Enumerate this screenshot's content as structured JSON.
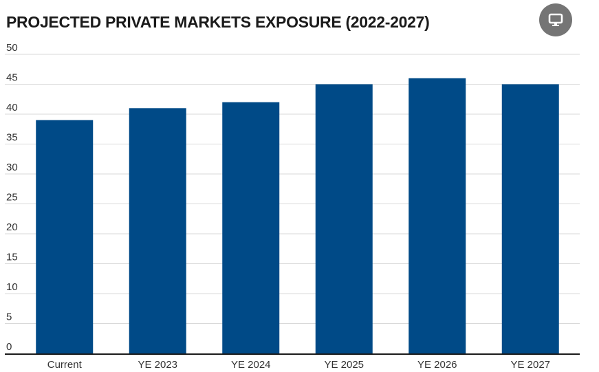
{
  "title": "PROJECTED PRIVATE MARKETS EXPOSURE (2022-2027)",
  "present_icon": "monitor-icon",
  "colors": {
    "bar": "#004a87",
    "grid": "#d9d9d9",
    "axis": "#1a1a1a",
    "button": "#757575"
  },
  "chart_data": {
    "type": "bar",
    "title": "PROJECTED PRIVATE MARKETS EXPOSURE (2022-2027)",
    "categories": [
      "Current",
      "YE 2023",
      "YE 2024",
      "YE 2025",
      "YE 2026",
      "YE 2027"
    ],
    "values": [
      39,
      41,
      42,
      45,
      46,
      45
    ],
    "ylim": [
      0,
      50
    ],
    "yticks": [
      "0",
      "5",
      "10",
      "15",
      "20",
      "25",
      "30",
      "35",
      "40",
      "45",
      "50"
    ],
    "grid": true,
    "legend": "none"
  }
}
